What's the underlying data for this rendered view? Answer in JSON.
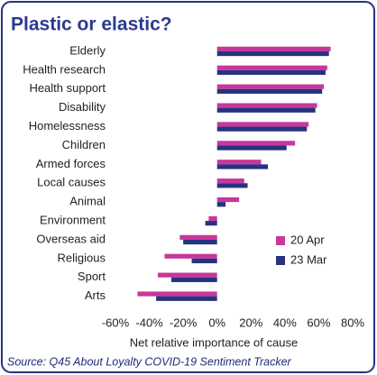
{
  "chart_data": {
    "type": "hbar",
    "title": "Plastic or elastic?",
    "x_label": "Net relative importance of cause",
    "source": "Source: Q45 About Loyalty COVID-19 Sentiment Tracker",
    "categories": [
      "Elderly",
      "Health research",
      "Health support",
      "Disability",
      "Homelessness",
      "Children",
      "Armed forces",
      "Local causes",
      "Animal",
      "Environment",
      "Overseas aid",
      "Religious",
      "Sport",
      "Arts"
    ],
    "series": [
      {
        "name": "20 Apr",
        "color": "#c8379b",
        "values": [
          67,
          65,
          63,
          59,
          54,
          46,
          26,
          16,
          13,
          -5,
          -22,
          -31,
          -35,
          -47
        ]
      },
      {
        "name": "23 Mar",
        "color": "#27337f",
        "values": [
          66,
          64,
          62,
          58,
          53,
          41,
          30,
          18,
          5,
          -7,
          -20,
          -15,
          -27,
          -36
        ]
      }
    ],
    "xlim": [
      -60,
      80
    ],
    "xticks": [
      {
        "value": -60,
        "label": "-60%"
      },
      {
        "value": -40,
        "label": "-40%"
      },
      {
        "value": -20,
        "label": "-20%"
      },
      {
        "value": 0,
        "label": "0%"
      },
      {
        "value": 20,
        "label": "20%"
      },
      {
        "value": 40,
        "label": "40%"
      },
      {
        "value": 60,
        "label": "60%"
      },
      {
        "value": 80,
        "label": "80%"
      }
    ],
    "legend": "lower right"
  }
}
